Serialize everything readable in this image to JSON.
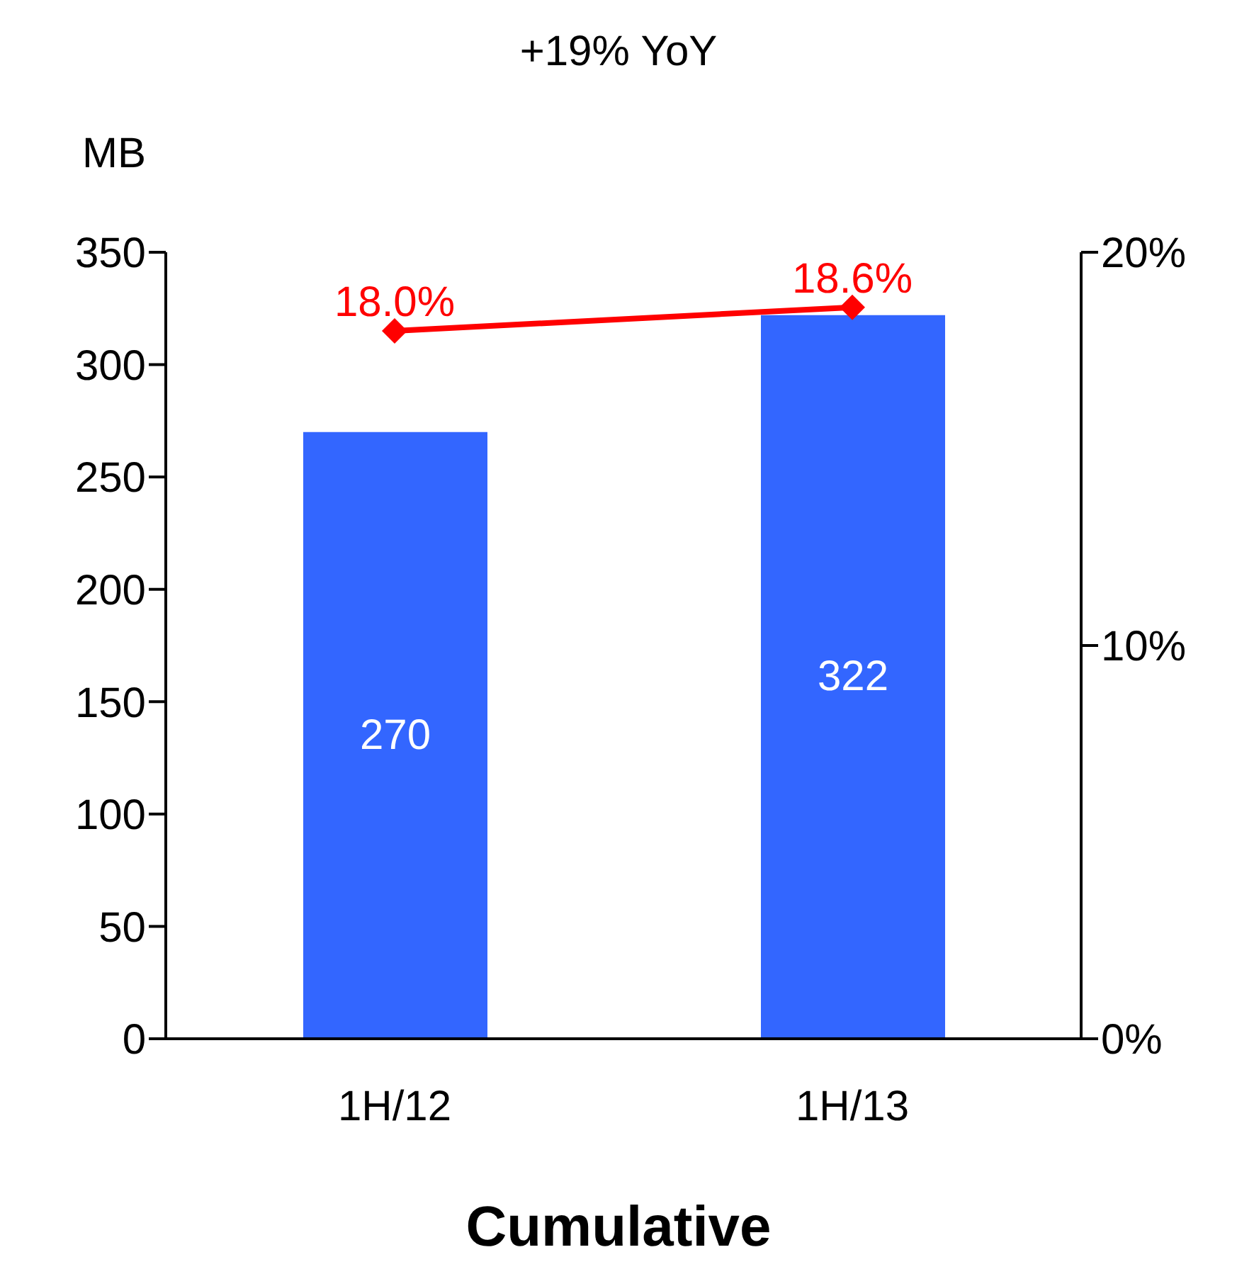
{
  "chart_data": {
    "type": "bar",
    "title": "+19% YoY",
    "ylabel": "MB",
    "xlabel": "Cumulative",
    "categories": [
      "1H/12",
      "1H/13"
    ],
    "series": [
      {
        "color": "#3366ff",
        "values": [
          270,
          322
        ],
        "value_labels": [
          "270",
          "322"
        ]
      },
      {
        "type": "line",
        "axis": "y2",
        "color": "#ff0000",
        "values": [
          18.0,
          18.6
        ],
        "value_labels": [
          "18.0%",
          "18.6%"
        ],
        "marker": "diamond",
        "line_style": "solid"
      }
    ],
    "ylim": [
      0,
      350
    ],
    "yticks": [
      0,
      50,
      100,
      150,
      200,
      250,
      300,
      350
    ],
    "y2lim": [
      0,
      20
    ],
    "y2ticks": [
      {
        "value": 0,
        "label": "0%"
      },
      {
        "value": 10,
        "label": "10%"
      },
      {
        "value": 20,
        "label": "20%"
      }
    ],
    "grid": false,
    "legend": false
  }
}
